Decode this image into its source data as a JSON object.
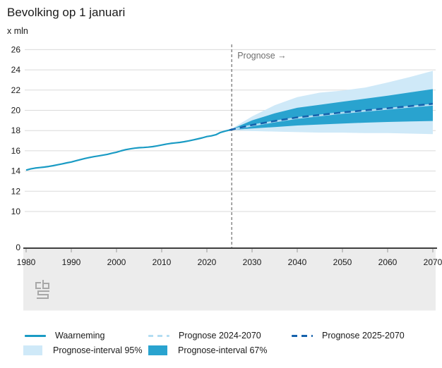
{
  "title": "Bevolking op 1 januari",
  "unit_label": "x mln",
  "annotation": {
    "prognose_label": "Prognose →"
  },
  "colors": {
    "waarneming": "#1a9bc4",
    "prognose_2025": "#1562ac",
    "prognose_2024": "#b3ddf2",
    "interval_95": "#cfe9f8",
    "interval_67": "#29a3cf",
    "divider": "#777777",
    "gridline": "#dadada",
    "axis": "#3f3f3f",
    "tick": "#9a9a9a",
    "axis_band": "#ececec",
    "label_text": "#1a1a1a",
    "annotation_text": "#6e6e6e",
    "logo": "#a8a8a8"
  },
  "legend": {
    "row1": [
      {
        "id": "waarneming",
        "label": "Waarneming"
      },
      {
        "id": "prognose-2024-2070",
        "label": "Prognose 2024-2070"
      },
      {
        "id": "prognose-2025-2070",
        "label": "Prognose 2025-2070"
      }
    ],
    "row2": [
      {
        "id": "interval-95",
        "label": "Prognose-interval 95%"
      },
      {
        "id": "interval-67",
        "label": "Prognose-interval 67%"
      }
    ]
  },
  "chart_data": {
    "type": "line",
    "title": "Bevolking op 1 januari",
    "ylabel": "x mln",
    "xlabel": "",
    "grid": true,
    "legend_position": "bottom",
    "x_range": [
      1980,
      2070
    ],
    "y_ticks": [
      0,
      10,
      12,
      14,
      16,
      18,
      20,
      22,
      24,
      26
    ],
    "x_ticks": [
      1980,
      1990,
      2000,
      2010,
      2020,
      2030,
      2040,
      2050,
      2060,
      2070
    ],
    "axis_break_between_0_and_10": true,
    "prognose_divider_x": 2025.5,
    "series": [
      {
        "name": "Waarneming",
        "type": "line",
        "style": "solid",
        "x_start": 1980,
        "x_step": 1,
        "values": [
          14.09,
          14.21,
          14.29,
          14.34,
          14.39,
          14.45,
          14.53,
          14.62,
          14.71,
          14.81,
          14.89,
          15.01,
          15.13,
          15.24,
          15.34,
          15.42,
          15.49,
          15.57,
          15.65,
          15.76,
          15.86,
          15.99,
          16.11,
          16.19,
          16.26,
          16.31,
          16.33,
          16.36,
          16.41,
          16.49,
          16.57,
          16.66,
          16.73,
          16.78,
          16.83,
          16.9,
          16.98,
          17.08,
          17.18,
          17.28,
          17.41,
          17.48,
          17.59,
          17.81,
          17.94,
          18.05
        ]
      },
      {
        "name": "Prognose 2024-2070",
        "type": "line",
        "style": "dashed-light",
        "x": [
          2025,
          2030,
          2035,
          2040,
          2045,
          2050,
          2055,
          2060,
          2065,
          2070
        ],
        "values": [
          18.05,
          18.5,
          18.9,
          19.25,
          19.5,
          19.75,
          19.95,
          20.15,
          20.36,
          20.55
        ]
      },
      {
        "name": "Prognose 2025-2070",
        "type": "line",
        "style": "dashed-dark",
        "x": [
          2025,
          2030,
          2035,
          2040,
          2045,
          2050,
          2055,
          2060,
          2065,
          2070
        ],
        "values": [
          18.05,
          18.55,
          18.95,
          19.3,
          19.55,
          19.8,
          20.0,
          20.2,
          20.42,
          20.65
        ]
      },
      {
        "name": "Prognose-interval 95%",
        "type": "band",
        "x": [
          2025,
          2030,
          2035,
          2040,
          2045,
          2050,
          2055,
          2060,
          2065,
          2070
        ],
        "upper": [
          18.05,
          19.4,
          20.5,
          21.3,
          21.75,
          21.95,
          22.25,
          22.75,
          23.3,
          23.9
        ],
        "lower": [
          18.05,
          17.95,
          17.9,
          17.85,
          17.8,
          17.8,
          17.75,
          17.75,
          17.7,
          17.65
        ]
      },
      {
        "name": "Prognose-interval 67%",
        "type": "band",
        "x": [
          2025,
          2030,
          2035,
          2040,
          2045,
          2050,
          2055,
          2060,
          2065,
          2070
        ],
        "upper": [
          18.05,
          19.0,
          19.7,
          20.25,
          20.55,
          20.85,
          21.15,
          21.45,
          21.78,
          22.1
        ],
        "lower": [
          18.05,
          18.2,
          18.35,
          18.5,
          18.6,
          18.7,
          18.78,
          18.85,
          18.9,
          18.95
        ]
      }
    ]
  }
}
